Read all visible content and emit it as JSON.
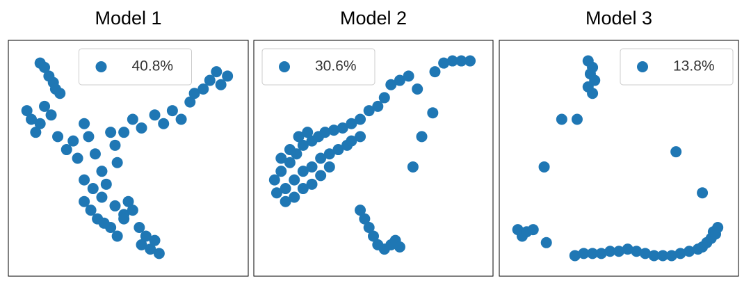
{
  "chart_data": [
    {
      "type": "scatter",
      "title": "Model 1",
      "legend": "upper center",
      "xlim": [
        0,
        100
      ],
      "ylim": [
        0,
        100
      ],
      "series": [
        {
          "name": "40.8%",
          "color": "#1f77b4",
          "x": [
            10,
            12,
            14,
            16,
            17,
            19,
            4,
            6,
            8,
            10,
            12,
            15,
            18,
            22,
            25,
            27,
            30,
            32,
            35,
            38,
            40,
            42,
            44,
            45,
            30,
            33,
            36,
            39,
            42,
            45,
            48,
            50,
            30,
            34,
            38,
            44,
            48,
            52,
            55,
            56,
            58,
            60,
            62,
            64,
            62,
            66,
            70,
            74,
            78,
            80,
            84,
            87,
            90,
            92,
            95,
            48,
            52,
            56
          ],
          "y": [
            94,
            92,
            88,
            85,
            82,
            80,
            72,
            68,
            62,
            66,
            74,
            70,
            60,
            54,
            58,
            50,
            66,
            60,
            52,
            44,
            38,
            62,
            56,
            48,
            30,
            26,
            22,
            20,
            18,
            14,
            24,
            30,
            40,
            36,
            32,
            28,
            22,
            26,
            18,
            10,
            14,
            8,
            12,
            6,
            70,
            66,
            72,
            68,
            76,
            80,
            82,
            86,
            90,
            84,
            88,
            62,
            68,
            64
          ]
        }
      ]
    },
    {
      "type": "scatter",
      "title": "Model 2",
      "legend": "upper left",
      "xlim": [
        0,
        100
      ],
      "ylim": [
        0,
        100
      ],
      "series": [
        {
          "name": "30.6%",
          "color": "#1f77b4",
          "x": [
            5,
            8,
            12,
            15,
            18,
            22,
            25,
            28,
            32,
            36,
            40,
            44,
            6,
            10,
            14,
            18,
            22,
            26,
            30,
            34,
            38,
            10,
            14,
            18,
            22,
            26,
            30,
            8,
            12,
            16,
            20,
            40,
            44,
            48,
            52,
            55,
            58,
            62,
            66,
            70,
            78,
            82,
            86,
            90,
            94,
            68,
            72,
            77,
            44,
            46,
            48,
            50,
            52,
            55,
            58,
            60,
            62
          ],
          "y": [
            40,
            44,
            48,
            52,
            56,
            58,
            60,
            62,
            63,
            64,
            66,
            60,
            34,
            36,
            40,
            44,
            46,
            50,
            52,
            54,
            56,
            30,
            32,
            36,
            38,
            42,
            46,
            50,
            54,
            60,
            62,
            58,
            68,
            72,
            74,
            78,
            84,
            86,
            88,
            82,
            90,
            94,
            95,
            95,
            95,
            46,
            60,
            71,
            26,
            22,
            18,
            14,
            10,
            8,
            10,
            12,
            9
          ]
        }
      ]
    },
    {
      "type": "scatter",
      "title": "Model 3",
      "legend": "upper right",
      "xlim": [
        0,
        100
      ],
      "ylim": [
        0,
        100
      ],
      "series": [
        {
          "name": "13.8%",
          "color": "#1f77b4",
          "x": [
            36,
            38,
            37,
            39,
            36,
            38,
            24,
            31,
            16,
            76,
            88,
            93,
            17,
            4,
            6,
            8,
            11,
            30,
            34,
            38,
            42,
            46,
            50,
            54,
            58,
            62,
            66,
            70,
            74,
            78,
            82,
            86,
            88,
            90,
            92,
            94,
            95
          ],
          "y": [
            95,
            92,
            89,
            86,
            83,
            80,
            68,
            68,
            46,
            53,
            34,
            16,
            11,
            17,
            14,
            16,
            17,
            5,
            6,
            6,
            6,
            7,
            7,
            8,
            7,
            6,
            5,
            5,
            5,
            6,
            7,
            8,
            9,
            11,
            13,
            15,
            18
          ]
        }
      ]
    }
  ]
}
